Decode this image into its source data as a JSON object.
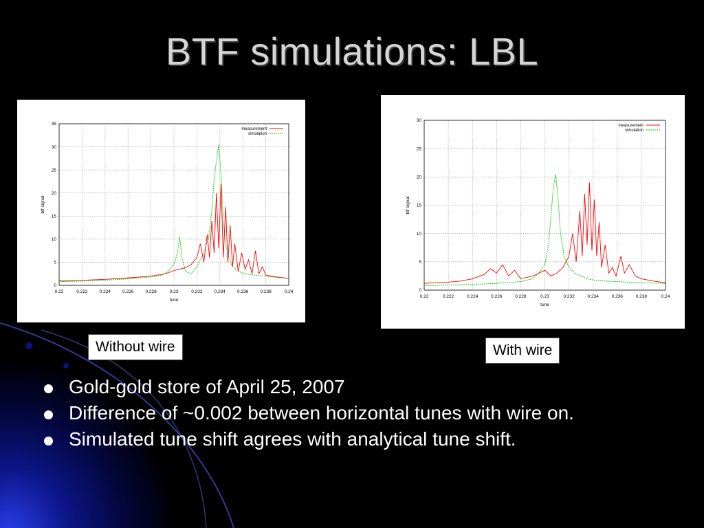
{
  "slide": {
    "title": "BTF simulations: LBL",
    "bullets": [
      "Gold-gold store of April 25, 2007",
      "Difference of ~0.002 between horizontal  tunes with wire on.",
      "Simulated tune shift agrees with analytical tune shift."
    ]
  },
  "captions": {
    "left": "Without wire",
    "right": "With wire"
  },
  "colors": {
    "measurement": "#ff0000",
    "simulation": "#00cc00",
    "grid": "#9a9a9a",
    "accent": "#1a2fd0"
  },
  "chart_data": [
    {
      "type": "line",
      "xlabel": "tune",
      "ylabel": "btf signal",
      "xlim": [
        0.22,
        0.24
      ],
      "ylim": [
        0,
        35
      ],
      "xticks": [
        "0.22",
        "0.222",
        "0.224",
        "0.226",
        "0.228",
        "0.23",
        "0.232",
        "0.234",
        "0.236",
        "0.238",
        "0.24"
      ],
      "yticks": [
        "0",
        "5",
        "10",
        "15",
        "20",
        "25",
        "30",
        "35"
      ],
      "grid": true,
      "legend_position": "top-right",
      "series": [
        {
          "name": "measurement",
          "color": "#ff0000",
          "points": [
            [
              0.22,
              1.0
            ],
            [
              0.222,
              1.1
            ],
            [
              0.224,
              1.3
            ],
            [
              0.226,
              1.6
            ],
            [
              0.228,
              2.0
            ],
            [
              0.229,
              2.4
            ],
            [
              0.2295,
              2.7
            ],
            [
              0.23,
              3.2
            ],
            [
              0.2305,
              3.5
            ],
            [
              0.231,
              3.8
            ],
            [
              0.2315,
              4.5
            ],
            [
              0.232,
              6.0
            ],
            [
              0.2323,
              9.0
            ],
            [
              0.2326,
              5.0
            ],
            [
              0.2329,
              11.0
            ],
            [
              0.2331,
              6.0
            ],
            [
              0.2333,
              14.0
            ],
            [
              0.2335,
              7.0
            ],
            [
              0.2337,
              20.0
            ],
            [
              0.2339,
              8.0
            ],
            [
              0.2341,
              22.0
            ],
            [
              0.2343,
              6.0
            ],
            [
              0.2345,
              17.0
            ],
            [
              0.2347,
              5.0
            ],
            [
              0.2349,
              13.0
            ],
            [
              0.2351,
              4.0
            ],
            [
              0.2353,
              9.0
            ],
            [
              0.2356,
              3.0
            ],
            [
              0.2359,
              7.0
            ],
            [
              0.2362,
              3.5
            ],
            [
              0.2365,
              5.5
            ],
            [
              0.2368,
              2.5
            ],
            [
              0.2371,
              7.5
            ],
            [
              0.2374,
              2.5
            ],
            [
              0.2377,
              4.0
            ],
            [
              0.238,
              2.2
            ],
            [
              0.239,
              1.8
            ],
            [
              0.24,
              1.5
            ]
          ]
        },
        {
          "name": "simulation",
          "color": "#00cc00",
          "points": [
            [
              0.22,
              0.8
            ],
            [
              0.222,
              0.9
            ],
            [
              0.224,
              1.1
            ],
            [
              0.226,
              1.4
            ],
            [
              0.228,
              1.8
            ],
            [
              0.229,
              2.2
            ],
            [
              0.2295,
              3.0
            ],
            [
              0.23,
              4.5
            ],
            [
              0.2303,
              7.0
            ],
            [
              0.2305,
              10.5
            ],
            [
              0.2307,
              6.0
            ],
            [
              0.231,
              3.0
            ],
            [
              0.2315,
              2.5
            ],
            [
              0.232,
              4.0
            ],
            [
              0.2325,
              6.5
            ],
            [
              0.233,
              10.0
            ],
            [
              0.2333,
              16.0
            ],
            [
              0.2335,
              23.0
            ],
            [
              0.2337,
              27.0
            ],
            [
              0.2339,
              30.5
            ],
            [
              0.2341,
              24.0
            ],
            [
              0.2343,
              14.0
            ],
            [
              0.2345,
              9.0
            ],
            [
              0.2348,
              6.0
            ],
            [
              0.235,
              4.5
            ],
            [
              0.2355,
              3.2
            ],
            [
              0.236,
              2.6
            ],
            [
              0.237,
              2.2
            ],
            [
              0.238,
              2.0
            ],
            [
              0.239,
              1.7
            ],
            [
              0.24,
              1.5
            ]
          ]
        }
      ]
    },
    {
      "type": "line",
      "xlabel": "tune",
      "ylabel": "btf signal",
      "xlim": [
        0.22,
        0.24
      ],
      "ylim": [
        0,
        30
      ],
      "xticks": [
        "0.22",
        "0.222",
        "0.224",
        "0.226",
        "0.228",
        "0.23",
        "0.232",
        "0.234",
        "0.236",
        "0.238",
        "0.24"
      ],
      "yticks": [
        "0",
        "5",
        "10",
        "15",
        "20",
        "25",
        "30"
      ],
      "grid": true,
      "legend_position": "top-right",
      "series": [
        {
          "name": "measurement",
          "color": "#ff0000",
          "points": [
            [
              0.22,
              1.2
            ],
            [
              0.222,
              1.4
            ],
            [
              0.223,
              1.6
            ],
            [
              0.224,
              2.0
            ],
            [
              0.225,
              2.8
            ],
            [
              0.2255,
              3.8
            ],
            [
              0.226,
              3.0
            ],
            [
              0.2265,
              4.5
            ],
            [
              0.227,
              2.5
            ],
            [
              0.2275,
              3.5
            ],
            [
              0.228,
              2.0
            ],
            [
              0.229,
              2.5
            ],
            [
              0.23,
              3.5
            ],
            [
              0.2305,
              2.5
            ],
            [
              0.231,
              3.0
            ],
            [
              0.2315,
              4.0
            ],
            [
              0.232,
              6.0
            ],
            [
              0.2323,
              10.0
            ],
            [
              0.2326,
              5.0
            ],
            [
              0.2329,
              14.0
            ],
            [
              0.2331,
              6.0
            ],
            [
              0.2333,
              17.0
            ],
            [
              0.2335,
              8.0
            ],
            [
              0.2337,
              19.0
            ],
            [
              0.2339,
              7.0
            ],
            [
              0.2341,
              16.0
            ],
            [
              0.2343,
              6.0
            ],
            [
              0.2345,
              12.0
            ],
            [
              0.2347,
              4.0
            ],
            [
              0.235,
              8.0
            ],
            [
              0.2353,
              3.0
            ],
            [
              0.2356,
              4.0
            ],
            [
              0.2359,
              2.5
            ],
            [
              0.2363,
              6.0
            ],
            [
              0.2366,
              3.0
            ],
            [
              0.237,
              4.5
            ],
            [
              0.2375,
              2.5
            ],
            [
              0.238,
              2.0
            ],
            [
              0.239,
              1.6
            ],
            [
              0.24,
              1.3
            ]
          ]
        },
        {
          "name": "simulation",
          "color": "#00cc00",
          "points": [
            [
              0.22,
              0.8
            ],
            [
              0.222,
              0.9
            ],
            [
              0.224,
              1.0
            ],
            [
              0.226,
              1.2
            ],
            [
              0.228,
              1.5
            ],
            [
              0.229,
              2.0
            ],
            [
              0.2295,
              3.0
            ],
            [
              0.23,
              4.5
            ],
            [
              0.2303,
              8.0
            ],
            [
              0.2305,
              13.0
            ],
            [
              0.2307,
              18.0
            ],
            [
              0.2309,
              20.5
            ],
            [
              0.2311,
              16.0
            ],
            [
              0.2313,
              10.0
            ],
            [
              0.2316,
              6.0
            ],
            [
              0.232,
              4.0
            ],
            [
              0.2325,
              3.0
            ],
            [
              0.233,
              2.5
            ],
            [
              0.2335,
              2.0
            ],
            [
              0.234,
              1.8
            ],
            [
              0.235,
              1.6
            ],
            [
              0.236,
              1.5
            ],
            [
              0.237,
              1.4
            ],
            [
              0.238,
              1.3
            ],
            [
              0.24,
              1.2
            ]
          ]
        }
      ]
    }
  ]
}
